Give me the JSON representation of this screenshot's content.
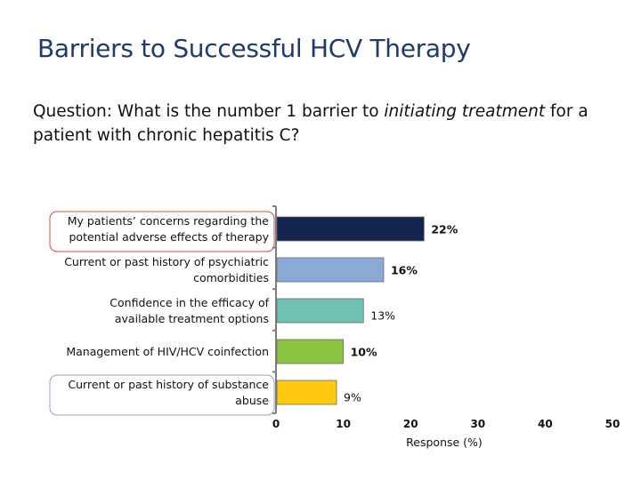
{
  "slide": {
    "title": "Barriers to Successful HCV Therapy",
    "question_before": "Question: What is the number 1 barrier to ",
    "question_emph": "initiating treatment",
    "question_after": " for a patient with chronic hepatitis C?"
  },
  "chart_data": {
    "type": "bar",
    "orientation": "horizontal",
    "categories": [
      [
        "My patients’ concerns regarding the",
        "potential adverse effects of therapy"
      ],
      [
        "Current or past history of psychiatric",
        "comorbidities"
      ],
      [
        "Confidence in the efficacy of",
        "available treatment options"
      ],
      [
        "Management of HIV/HCV coinfection"
      ],
      [
        "Current or past history of substance",
        "abuse"
      ]
    ],
    "values": [
      22,
      16,
      13,
      10,
      9
    ],
    "value_labels": [
      "22%",
      "16%",
      "13%",
      "10%",
      "9%"
    ],
    "bar_colors": [
      "#13244f",
      "#8aa9d4",
      "#6fc1b4",
      "#8ac43f",
      "#ffc90e"
    ],
    "highlighted": [
      0,
      4
    ],
    "highlight_colors": [
      "#c0504d",
      "#8ea4c8"
    ],
    "xlabel": "Response (%)",
    "xlim": [
      0,
      50
    ],
    "xticks": [
      0,
      10,
      20,
      30,
      40,
      50
    ],
    "grid": false
  }
}
